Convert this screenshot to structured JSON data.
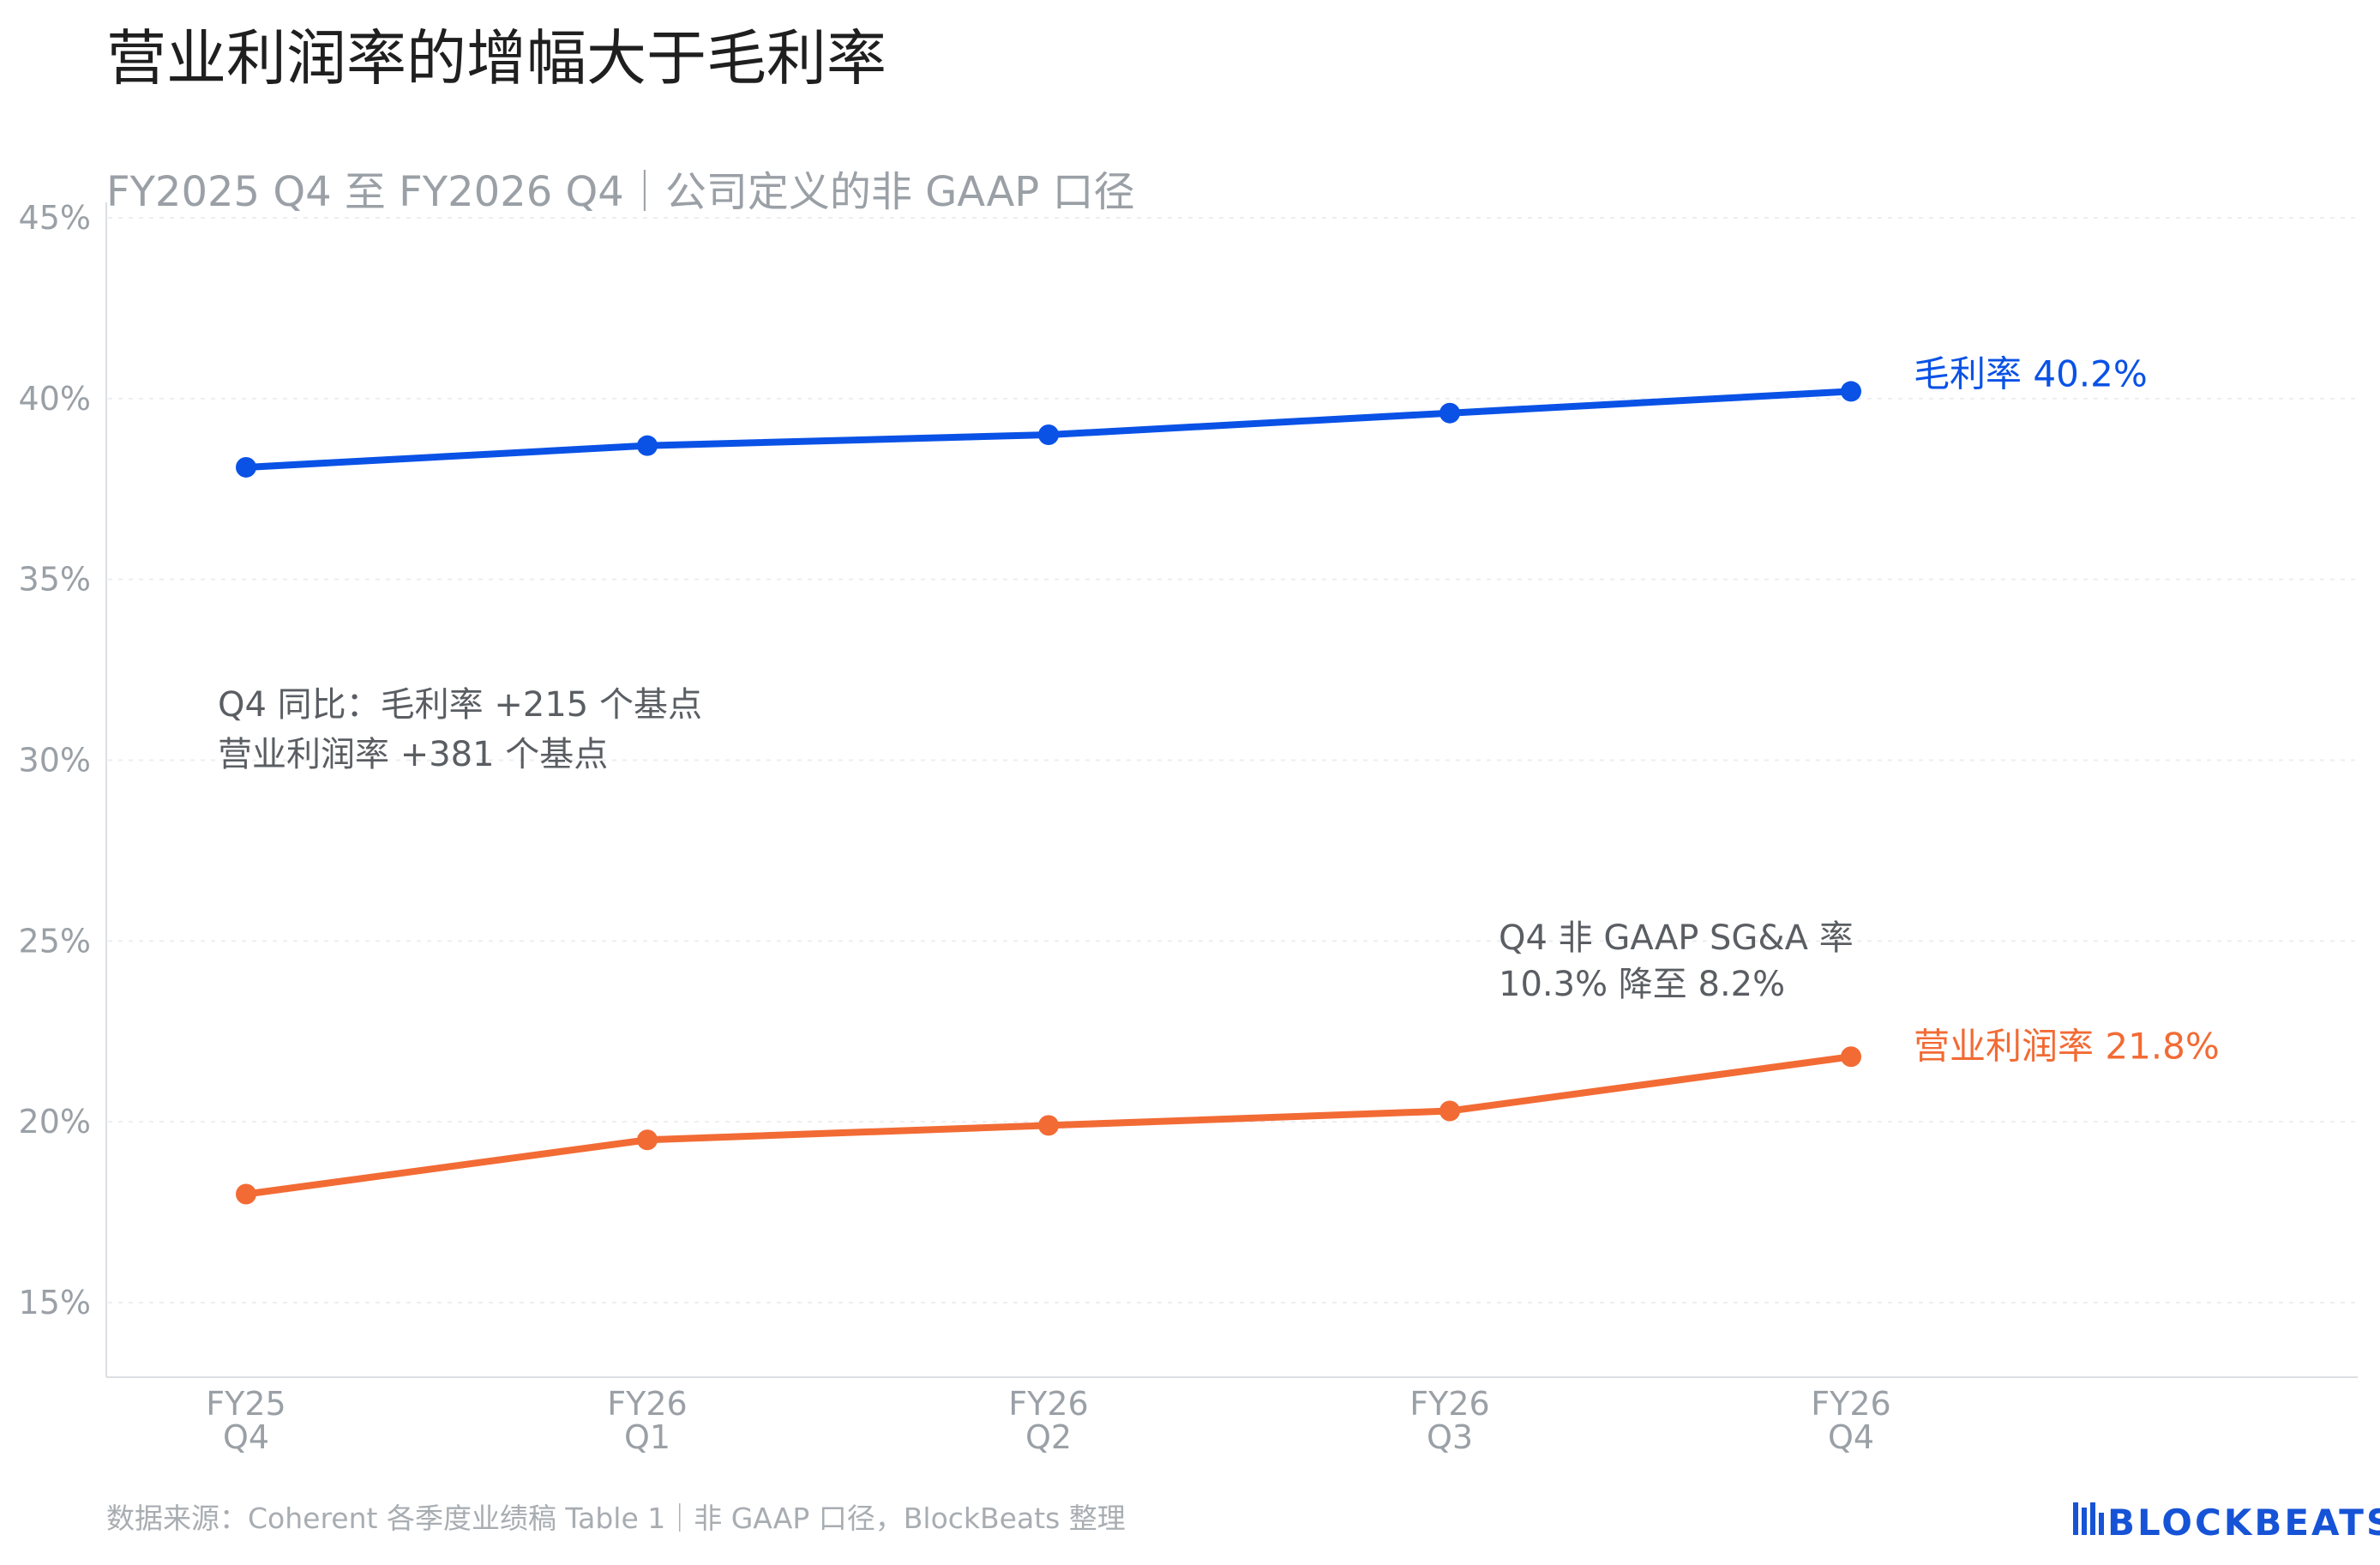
{
  "title": "营业利润率的增幅大于毛利率",
  "subtitle": "FY2025 Q4 至 FY2026 Q4｜公司定义的非 GAAP 口径",
  "source": "数据来源：Coherent 各季度业绩稿 Table 1｜非 GAAP 口径，BlockBeats 整理",
  "logo": "BLOCKBEATS",
  "annotations": {
    "yoy_line1": "Q4 同比：毛利率 +215 个基点",
    "yoy_line2": "营业利润率 +381 个基点",
    "sga_line1": "Q4 非 GAAP SG&A 率",
    "sga_line2": "10.3% 降至 8.2%"
  },
  "colors": {
    "gross_margin": "#0a52e6",
    "operating_margin": "#f26b35",
    "logo": "#1653d6"
  },
  "chart_data": {
    "type": "line",
    "x": [
      [
        "FY25",
        "Q4"
      ],
      [
        "FY26",
        "Q1"
      ],
      [
        "FY26",
        "Q2"
      ],
      [
        "FY26",
        "Q3"
      ],
      [
        "FY26",
        "Q4"
      ]
    ],
    "ylim": [
      13,
      45
    ],
    "yticks": [
      15,
      20,
      25,
      30,
      35,
      40,
      45
    ],
    "ytick_labels": [
      "15%",
      "20%",
      "25%",
      "30%",
      "35%",
      "40%",
      "45%"
    ],
    "grid": true,
    "series": [
      {
        "name": "毛利率",
        "end_label": "毛利率 40.2%",
        "values": [
          38.1,
          38.7,
          39.0,
          39.6,
          40.2
        ]
      },
      {
        "name": "营业利润率",
        "end_label": "营业利润率 21.8%",
        "values": [
          18.0,
          19.5,
          19.9,
          20.3,
          21.8
        ]
      }
    ]
  }
}
